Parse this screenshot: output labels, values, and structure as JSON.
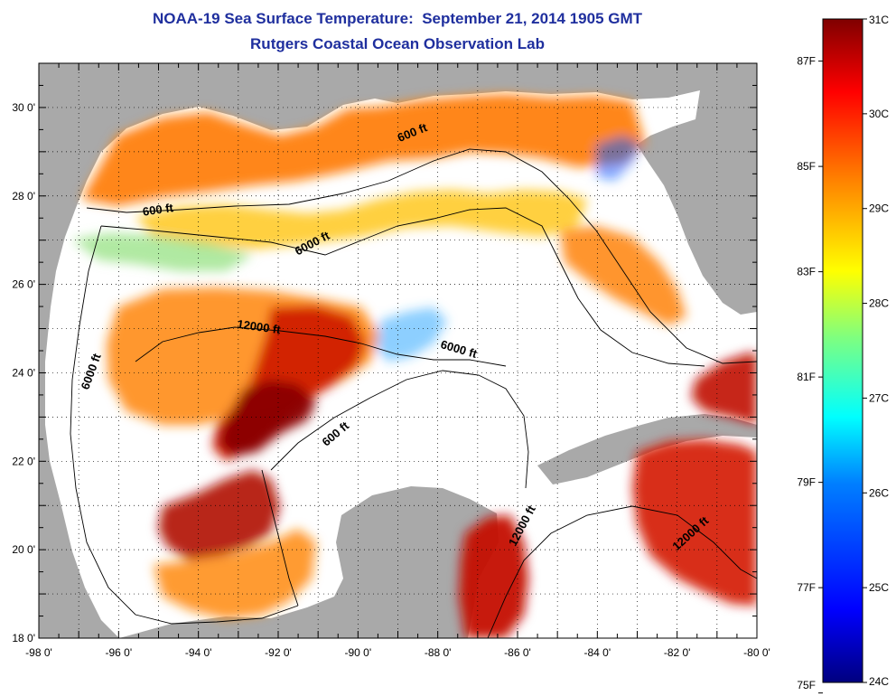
{
  "title": {
    "line1": "NOAA-19 Sea Surface Temperature:  September 21, 2014 1905 GMT",
    "line2": "Rutgers Coastal Ocean Observation Lab"
  },
  "map": {
    "lon_range": [
      -98,
      -80
    ],
    "lat_range": [
      18,
      31
    ],
    "lon_ticks": [
      "-98 0'",
      "-96 0'",
      "-94 0'",
      "-92 0'",
      "-90 0'",
      "-88 0'",
      "-86 0'",
      "-84 0'",
      "-82 0'",
      "-80 0'"
    ],
    "lat_ticks": [
      "18 0'",
      "20 0'",
      "22 0'",
      "24 0'",
      "26 0'",
      "28 0'",
      "30 0'"
    ],
    "land_color": "#a9a9a9",
    "no_data_color": "#ffffff",
    "contour_labels": [
      {
        "text": "600 ft",
        "lon": -88.6,
        "lat": 29.35,
        "angle": -22
      },
      {
        "text": "600 ft",
        "lon": -95.0,
        "lat": 27.6,
        "angle": -8
      },
      {
        "text": "6000 ft",
        "lon": -91.1,
        "lat": 26.85,
        "angle": -28
      },
      {
        "text": "6000 ft",
        "lon": -96.6,
        "lat": 24.0,
        "angle": -70
      },
      {
        "text": "12000 ft",
        "lon": -92.5,
        "lat": 24.95,
        "angle": 8
      },
      {
        "text": "6000 ft",
        "lon": -87.5,
        "lat": 24.45,
        "angle": 16
      },
      {
        "text": "600 ft",
        "lon": -90.5,
        "lat": 22.55,
        "angle": -40
      },
      {
        "text": "12000 ft",
        "lon": -85.8,
        "lat": 20.5,
        "angle": -62
      },
      {
        "text": "12000 ft",
        "lon": -81.6,
        "lat": 20.3,
        "angle": -42
      }
    ]
  },
  "colorbar": {
    "celsius_labels": [
      "31C",
      "30C",
      "29C",
      "28C",
      "27C",
      "26C",
      "25C",
      "24C"
    ],
    "fahrenheit_labels": [
      "87F",
      "85F",
      "83F",
      "81F",
      "79F",
      "77F",
      "75F"
    ],
    "range_c": [
      24,
      31
    ],
    "colors": [
      "#00007f",
      "#0000ff",
      "#007fff",
      "#00ffff",
      "#7fff7f",
      "#ffff00",
      "#ff7f00",
      "#ff0000",
      "#7f0000"
    ]
  }
}
